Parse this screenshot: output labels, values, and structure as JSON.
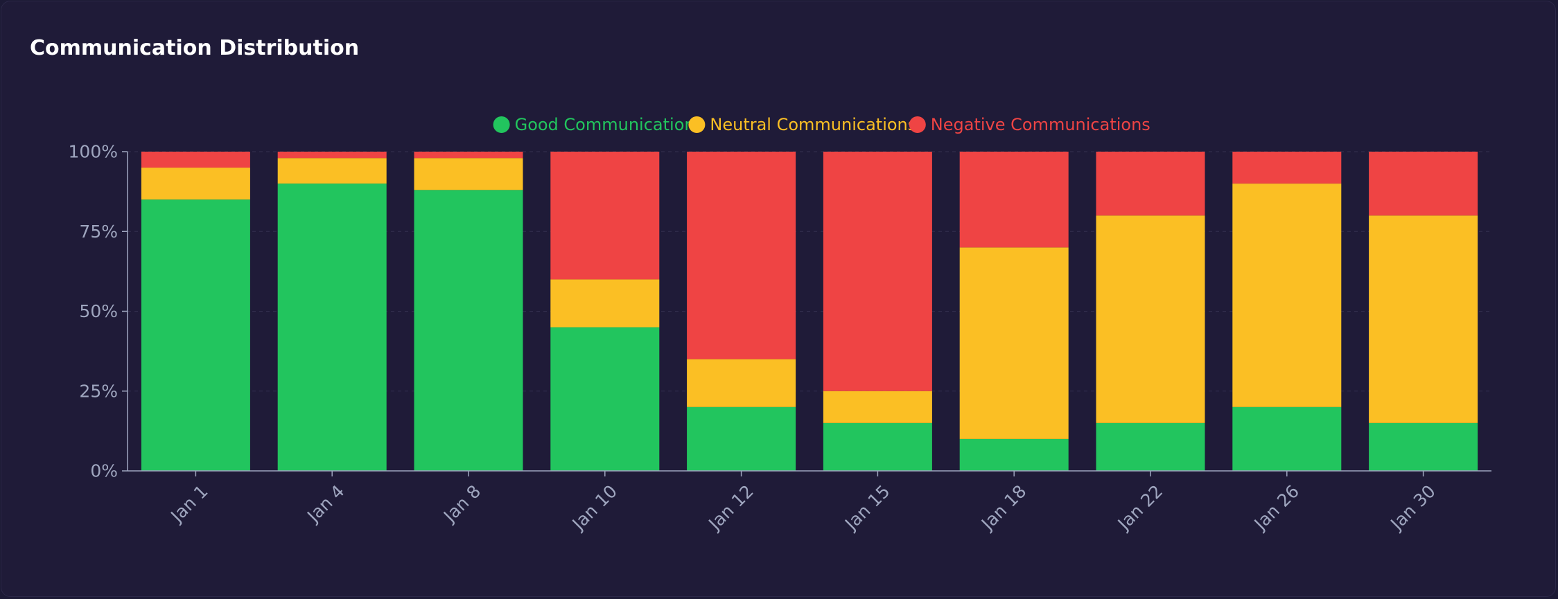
{
  "card": {
    "title": "Communication Distribution"
  },
  "colors": {
    "background": "#1f1b38",
    "good": "#22c55e",
    "neutral": "#fbbf24",
    "negative": "#ef4444",
    "axis": "#9fa6bf",
    "grid": "#34304f"
  },
  "chart_data": {
    "type": "bar",
    "stacked": true,
    "title": "Communication Distribution",
    "xlabel": "",
    "ylabel": "",
    "ylim": [
      0,
      100
    ],
    "y_ticks": [
      "0%",
      "25%",
      "50%",
      "75%",
      "100%"
    ],
    "y_tick_values": [
      0,
      25,
      50,
      75,
      100
    ],
    "grid": true,
    "legend_position": "top-center",
    "categories": [
      "Jan 1",
      "Jan 4",
      "Jan 8",
      "Jan 10",
      "Jan 12",
      "Jan 15",
      "Jan 18",
      "Jan 22",
      "Jan 26",
      "Jan 30"
    ],
    "series": [
      {
        "name": "Good Communications",
        "color": "#22c55e",
        "values": [
          85,
          90,
          88,
          45,
          20,
          15,
          10,
          15,
          20,
          15
        ]
      },
      {
        "name": "Neutral Communications",
        "color": "#fbbf24",
        "values": [
          10,
          8,
          10,
          15,
          15,
          10,
          60,
          65,
          70,
          65
        ]
      },
      {
        "name": "Negative Communications",
        "color": "#ef4444",
        "values": [
          5,
          2,
          2,
          40,
          65,
          75,
          30,
          20,
          10,
          20
        ]
      }
    ]
  }
}
